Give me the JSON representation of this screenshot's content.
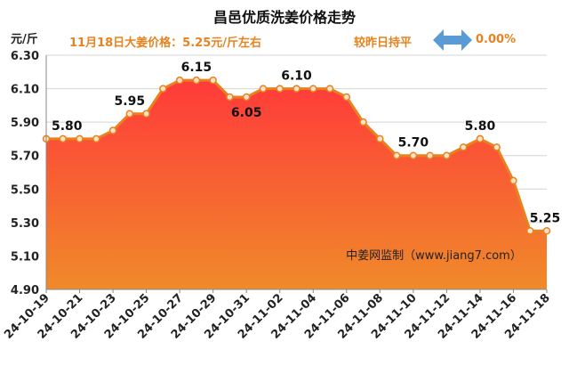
{
  "header": {
    "title": "昌邑优质洗姜价格走势",
    "unit": "元/斤",
    "subtitle": "11月18日大姜价格：5.25元/斤左右",
    "compare_label": "较昨日持平",
    "change": "0.00%"
  },
  "colors": {
    "line": "#e8821e",
    "fill_top": "#ff3a3a",
    "fill_bottom": "#f08a2a",
    "subtitle": "#e8821e",
    "arrow": "#5b9bd5"
  },
  "icons": {
    "compare": "double-arrow-icon"
  },
  "chart_data": {
    "type": "area",
    "title": "昌邑优质洗姜价格走势",
    "ylabel": "元/斤",
    "ylim": [
      4.9,
      6.3
    ],
    "yticks": [
      "6.30",
      "6.10",
      "5.90",
      "5.70",
      "5.50",
      "5.30",
      "5.10",
      "4.90"
    ],
    "grid": true,
    "watermark": "中姜网监制（www.jiang7.com）",
    "x": [
      "24-10-19",
      "24-10-20",
      "24-10-21",
      "24-10-22",
      "24-10-23",
      "24-10-24",
      "24-10-25",
      "24-10-26",
      "24-10-27",
      "24-10-28",
      "24-10-29",
      "24-10-30",
      "24-10-31",
      "24-11-01",
      "24-11-02",
      "24-11-03",
      "24-11-04",
      "24-11-05",
      "24-11-06",
      "24-11-07",
      "24-11-08",
      "24-11-09",
      "24-11-10",
      "24-11-11",
      "24-11-12",
      "24-11-13",
      "24-11-14",
      "24-11-15",
      "24-11-16",
      "24-11-17",
      "24-11-18"
    ],
    "xtick_labels": [
      "24-10-19",
      "24-10-21",
      "24-10-23",
      "24-10-25",
      "24-10-27",
      "24-10-29",
      "24-10-31",
      "24-11-02",
      "24-11-04",
      "24-11-06",
      "24-11-08",
      "24-11-10",
      "24-11-12",
      "24-11-14",
      "24-11-16",
      "24-11-18"
    ],
    "values": [
      5.8,
      5.8,
      5.8,
      5.8,
      5.85,
      5.95,
      5.95,
      6.1,
      6.15,
      6.15,
      6.15,
      6.05,
      6.05,
      6.1,
      6.1,
      6.1,
      6.1,
      6.1,
      6.05,
      5.9,
      5.8,
      5.7,
      5.7,
      5.7,
      5.7,
      5.75,
      5.8,
      5.75,
      5.55,
      5.25,
      5.25
    ],
    "data_labels": [
      {
        "index": 0,
        "text": "5.80"
      },
      {
        "index": 5,
        "text": "5.95"
      },
      {
        "index": 9,
        "text": "6.15"
      },
      {
        "index": 12,
        "text": "6.05"
      },
      {
        "index": 15,
        "text": "6.10"
      },
      {
        "index": 22,
        "text": "5.70"
      },
      {
        "index": 26,
        "text": "5.80"
      },
      {
        "index": 30,
        "text": "5.25"
      }
    ]
  }
}
